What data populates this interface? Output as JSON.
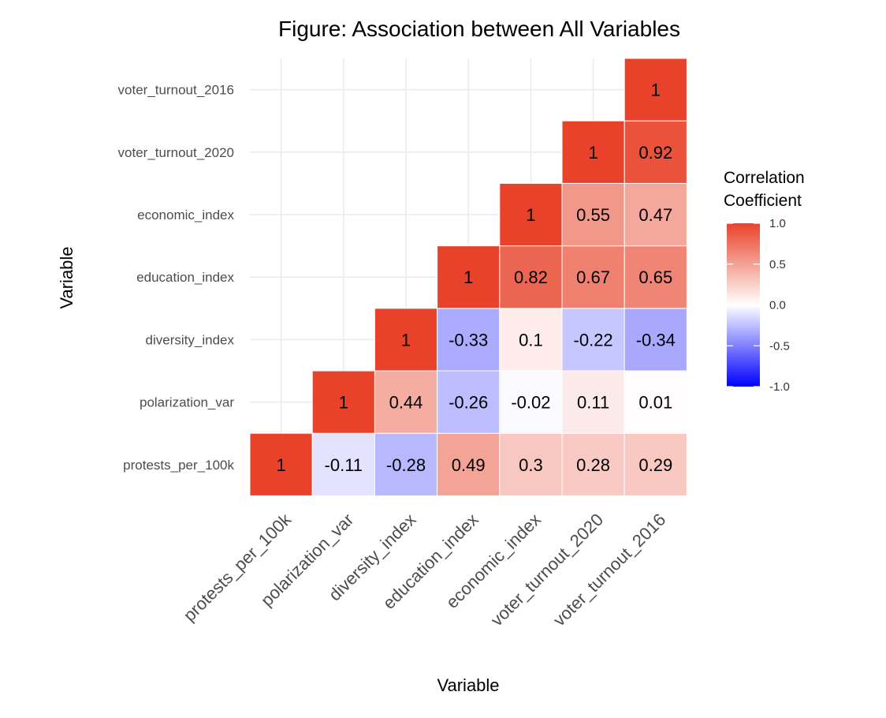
{
  "chart_data": {
    "type": "heatmap",
    "title": "Figure: Association between All Variables",
    "xlabel": "Variable",
    "ylabel": "Variable",
    "variables": [
      "protests_per_100k",
      "polarization_var",
      "diversity_index",
      "education_index",
      "economic_index",
      "voter_turnout_2020",
      "voter_turnout_2016"
    ],
    "cells": [
      {
        "x": "protests_per_100k",
        "y": "protests_per_100k",
        "value": 1,
        "label": "1"
      },
      {
        "x": "polarization_var",
        "y": "protests_per_100k",
        "value": -0.11,
        "label": "-0.11"
      },
      {
        "x": "diversity_index",
        "y": "protests_per_100k",
        "value": -0.28,
        "label": "-0.28"
      },
      {
        "x": "education_index",
        "y": "protests_per_100k",
        "value": 0.49,
        "label": "0.49"
      },
      {
        "x": "economic_index",
        "y": "protests_per_100k",
        "value": 0.3,
        "label": "0.3"
      },
      {
        "x": "voter_turnout_2020",
        "y": "protests_per_100k",
        "value": 0.28,
        "label": "0.28"
      },
      {
        "x": "voter_turnout_2016",
        "y": "protests_per_100k",
        "value": 0.29,
        "label": "0.29"
      },
      {
        "x": "polarization_var",
        "y": "polarization_var",
        "value": 1,
        "label": "1"
      },
      {
        "x": "diversity_index",
        "y": "polarization_var",
        "value": 0.44,
        "label": "0.44"
      },
      {
        "x": "education_index",
        "y": "polarization_var",
        "value": -0.26,
        "label": "-0.26"
      },
      {
        "x": "economic_index",
        "y": "polarization_var",
        "value": -0.02,
        "label": "-0.02"
      },
      {
        "x": "voter_turnout_2020",
        "y": "polarization_var",
        "value": 0.11,
        "label": "0.11"
      },
      {
        "x": "voter_turnout_2016",
        "y": "polarization_var",
        "value": 0.01,
        "label": "0.01"
      },
      {
        "x": "diversity_index",
        "y": "diversity_index",
        "value": 1,
        "label": "1"
      },
      {
        "x": "education_index",
        "y": "diversity_index",
        "value": -0.33,
        "label": "-0.33"
      },
      {
        "x": "economic_index",
        "y": "diversity_index",
        "value": 0.1,
        "label": "0.1"
      },
      {
        "x": "voter_turnout_2020",
        "y": "diversity_index",
        "value": -0.22,
        "label": "-0.22"
      },
      {
        "x": "voter_turnout_2016",
        "y": "diversity_index",
        "value": -0.34,
        "label": "-0.34"
      },
      {
        "x": "education_index",
        "y": "education_index",
        "value": 1,
        "label": "1"
      },
      {
        "x": "economic_index",
        "y": "education_index",
        "value": 0.82,
        "label": "0.82"
      },
      {
        "x": "voter_turnout_2020",
        "y": "education_index",
        "value": 0.67,
        "label": "0.67"
      },
      {
        "x": "voter_turnout_2016",
        "y": "education_index",
        "value": 0.65,
        "label": "0.65"
      },
      {
        "x": "economic_index",
        "y": "economic_index",
        "value": 1,
        "label": "1"
      },
      {
        "x": "voter_turnout_2020",
        "y": "economic_index",
        "value": 0.55,
        "label": "0.55"
      },
      {
        "x": "voter_turnout_2016",
        "y": "economic_index",
        "value": 0.47,
        "label": "0.47"
      },
      {
        "x": "voter_turnout_2020",
        "y": "voter_turnout_2020",
        "value": 1,
        "label": "1"
      },
      {
        "x": "voter_turnout_2016",
        "y": "voter_turnout_2020",
        "value": 0.92,
        "label": "0.92"
      },
      {
        "x": "voter_turnout_2016",
        "y": "voter_turnout_2016",
        "value": 1,
        "label": "1"
      }
    ],
    "legend": {
      "title_lines": [
        "Correlation",
        "Coefficient"
      ],
      "ticks": [
        {
          "value": 1.0,
          "label": "1.0"
        },
        {
          "value": 0.5,
          "label": "0.5"
        },
        {
          "value": 0.0,
          "label": "0.0"
        },
        {
          "value": -0.5,
          "label": "-0.5"
        },
        {
          "value": -1.0,
          "label": "-1.0"
        }
      ],
      "placement": "right"
    },
    "color_scale": {
      "low": "#0000ff",
      "mid": "#ffffff",
      "high": "#e8432a",
      "limits": [
        -1,
        1
      ]
    },
    "grid": true
  }
}
